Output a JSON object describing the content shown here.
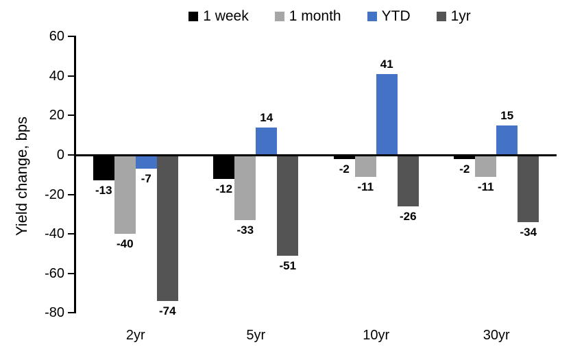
{
  "chart_data": {
    "type": "bar",
    "title": "",
    "ylabel": "Yield change, bps",
    "xlabel": "",
    "categories": [
      "2yr",
      "5yr",
      "10yr",
      "30yr"
    ],
    "series": [
      {
        "name": "1 week",
        "color": "#000000",
        "values": [
          -13,
          -12,
          -2,
          -2
        ]
      },
      {
        "name": "1 month",
        "color": "#A6A6A6",
        "values": [
          -40,
          -33,
          -11,
          -11
        ]
      },
      {
        "name": "YTD",
        "color": "#4472C4",
        "values": [
          -7,
          14,
          41,
          15
        ]
      },
      {
        "name": "1yr",
        "color": "#545454",
        "values": [
          -74,
          -51,
          -26,
          -34
        ]
      }
    ],
    "ylim": [
      -80,
      60
    ],
    "ytick_step": 20,
    "yticks": [
      60,
      40,
      20,
      0,
      -20,
      -40,
      -60,
      -80
    ],
    "legend_position": "top",
    "grid": false,
    "data_labels": true,
    "axis_color": "#000000",
    "background_color": "#FFFFFF"
  }
}
